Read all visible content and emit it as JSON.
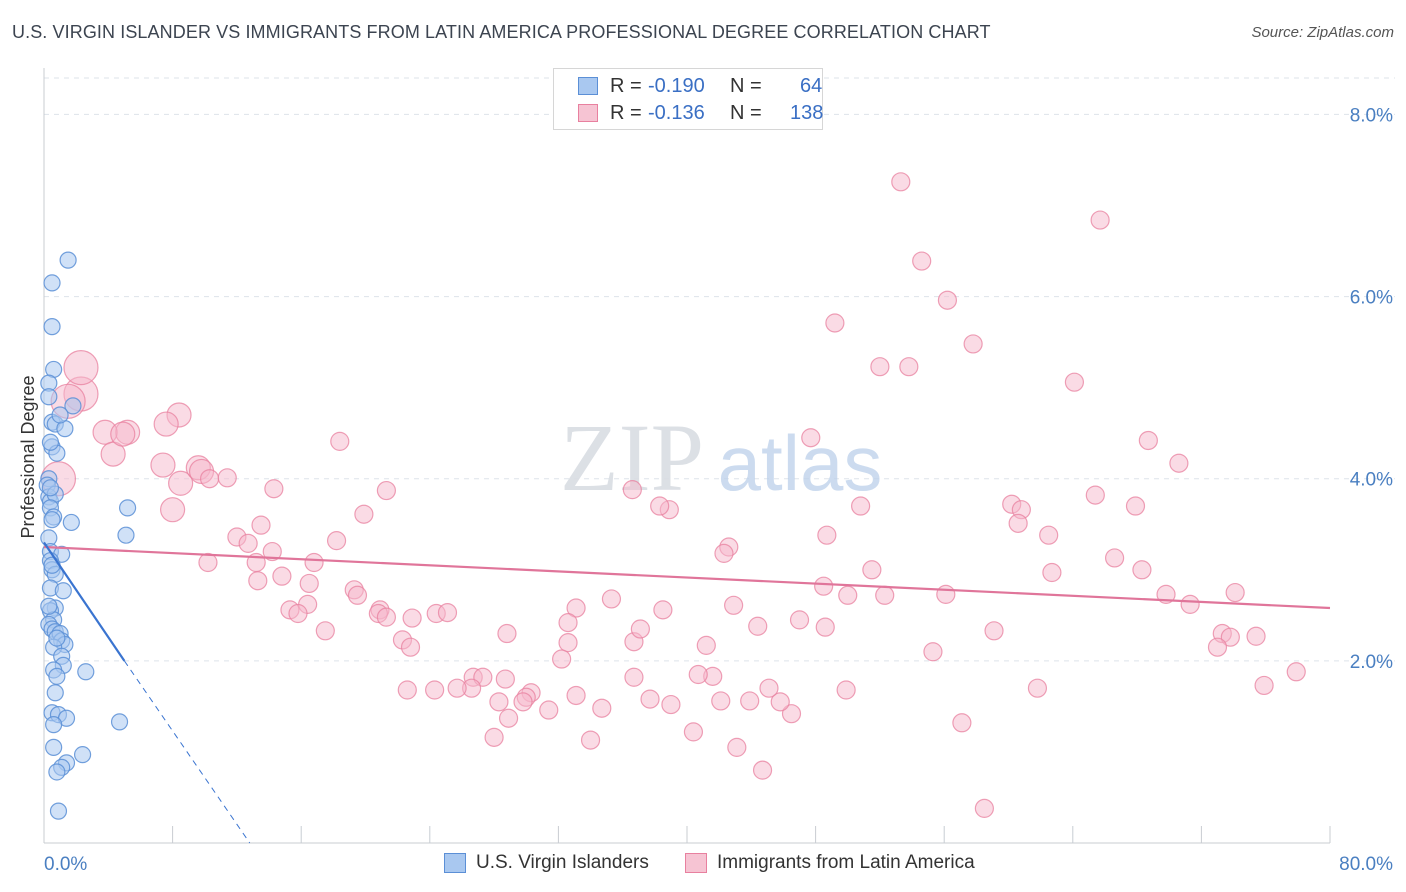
{
  "title": "U.S. VIRGIN ISLANDER VS IMMIGRANTS FROM LATIN AMERICA PROFESSIONAL DEGREE CORRELATION CHART",
  "source": "Source: ZipAtlas.com",
  "watermark": {
    "zip": "ZIP",
    "atlas": "atlas"
  },
  "legend": {
    "r_label": "R =",
    "n_label": "N =",
    "rows": [
      {
        "r": "-0.190",
        "n": "64"
      },
      {
        "r": "-0.136",
        "n": "138"
      }
    ]
  },
  "bottom_legend": [
    "U.S. Virgin Islanders",
    "Immigrants from Latin America"
  ],
  "colors": {
    "blue_fill": "#a9c8f0",
    "blue_stroke": "#5b8fd6",
    "blue_line": "#3a74d0",
    "pink_fill": "#f6b8cb",
    "pink_stroke": "#e8809f",
    "pink_line": "#e0759a",
    "grid": "#dde3ea",
    "axis_text": "#4a7fc1"
  },
  "chart_data": {
    "type": "scatter",
    "title": "U.S. VIRGIN ISLANDER VS IMMIGRANTS FROM LATIN AMERICA PROFESSIONAL DEGREE CORRELATION CHART",
    "xlabel": "",
    "ylabel": "Professional Degree",
    "xlim": [
      0,
      80
    ],
    "ylim": [
      0,
      8.4
    ],
    "x_edge_labels": [
      "0.0%",
      "80.0%"
    ],
    "y_ticks": [
      2,
      4,
      6,
      8
    ],
    "y_tick_labels": [
      "2.0%",
      "4.0%",
      "6.0%",
      "8.0%"
    ],
    "grid": true,
    "series": [
      {
        "name": "U.S. Virgin Islanders",
        "r": -0.19,
        "n": 64,
        "trend": {
          "x0": 0,
          "y0": 3.3,
          "x1": 5.0,
          "y1": 2.0,
          "dash_x1": 12.8,
          "dash_y1": 0
        },
        "points": [
          [
            1.5,
            6.4
          ],
          [
            0.5,
            6.15
          ],
          [
            0.5,
            5.67
          ],
          [
            0.6,
            5.2
          ],
          [
            0.3,
            5.05
          ],
          [
            0.3,
            4.9
          ],
          [
            1.8,
            4.8
          ],
          [
            0.5,
            4.62
          ],
          [
            0.7,
            4.6
          ],
          [
            1.3,
            4.55
          ],
          [
            0.5,
            4.35
          ],
          [
            0.8,
            4.28
          ],
          [
            0.3,
            4.0
          ],
          [
            0.2,
            3.93
          ],
          [
            0.3,
            3.8
          ],
          [
            0.4,
            3.75
          ],
          [
            0.7,
            3.83
          ],
          [
            0.4,
            3.68
          ],
          [
            5.2,
            3.68
          ],
          [
            0.6,
            3.58
          ],
          [
            0.5,
            3.55
          ],
          [
            1.7,
            3.52
          ],
          [
            5.1,
            3.38
          ],
          [
            0.3,
            3.35
          ],
          [
            0.4,
            3.2
          ],
          [
            1.1,
            3.17
          ],
          [
            0.4,
            3.1
          ],
          [
            0.5,
            3.0
          ],
          [
            0.7,
            2.95
          ],
          [
            0.4,
            2.8
          ],
          [
            1.2,
            2.77
          ],
          [
            0.7,
            2.58
          ],
          [
            0.4,
            2.55
          ],
          [
            0.6,
            2.45
          ],
          [
            0.3,
            2.4
          ],
          [
            0.5,
            2.35
          ],
          [
            0.7,
            2.32
          ],
          [
            1.0,
            2.3
          ],
          [
            1.1,
            2.22
          ],
          [
            1.3,
            2.18
          ],
          [
            0.6,
            2.15
          ],
          [
            1.1,
            2.05
          ],
          [
            1.2,
            1.95
          ],
          [
            0.6,
            1.9
          ],
          [
            2.6,
            1.88
          ],
          [
            0.8,
            1.83
          ],
          [
            0.7,
            1.65
          ],
          [
            0.5,
            1.43
          ],
          [
            0.9,
            1.41
          ],
          [
            1.4,
            1.37
          ],
          [
            4.7,
            1.33
          ],
          [
            0.6,
            1.05
          ],
          [
            1.4,
            0.88
          ],
          [
            2.4,
            0.97
          ],
          [
            1.1,
            0.83
          ],
          [
            0.8,
            0.78
          ],
          [
            0.9,
            0.35
          ],
          [
            0.3,
            2.6
          ],
          [
            0.4,
            3.9
          ],
          [
            1.0,
            4.7
          ],
          [
            0.5,
            3.05
          ],
          [
            0.8,
            2.25
          ],
          [
            0.6,
            1.3
          ],
          [
            0.4,
            4.4
          ]
        ]
      },
      {
        "name": "Immigrants from Latin America",
        "r": -0.136,
        "n": 138,
        "trend": {
          "x0": 0,
          "y0": 3.25,
          "x1": 80,
          "y1": 2.58
        },
        "points": [
          [
            53.3,
            7.26
          ],
          [
            65.7,
            6.84
          ],
          [
            54.6,
            6.39
          ],
          [
            56.2,
            5.96
          ],
          [
            49.2,
            5.71
          ],
          [
            57.8,
            5.48
          ],
          [
            52.0,
            5.23
          ],
          [
            53.8,
            5.23
          ],
          [
            64.1,
            5.06
          ],
          [
            47.7,
            4.45
          ],
          [
            68.7,
            4.42
          ],
          [
            70.6,
            4.17
          ],
          [
            18.4,
            4.41
          ],
          [
            8.4,
            4.7
          ],
          [
            7.6,
            4.6
          ],
          [
            5.2,
            4.51
          ],
          [
            3.8,
            4.51
          ],
          [
            2.3,
            4.93
          ],
          [
            1.5,
            4.85
          ],
          [
            4.3,
            4.27
          ],
          [
            2.3,
            5.22
          ],
          [
            0.9,
            4.0
          ],
          [
            7.4,
            4.15
          ],
          [
            8.5,
            3.95
          ],
          [
            9.6,
            4.12
          ],
          [
            9.8,
            4.08
          ],
          [
            10.3,
            4.0
          ],
          [
            11.4,
            4.01
          ],
          [
            14.3,
            3.89
          ],
          [
            21.3,
            3.87
          ],
          [
            36.6,
            3.88
          ],
          [
            38.9,
            3.66
          ],
          [
            50.8,
            3.7
          ],
          [
            60.2,
            3.72
          ],
          [
            65.4,
            3.82
          ],
          [
            67.9,
            3.7
          ],
          [
            60.8,
            3.66
          ],
          [
            60.6,
            3.51
          ],
          [
            62.5,
            3.38
          ],
          [
            19.9,
            3.61
          ],
          [
            13.5,
            3.49
          ],
          [
            12.0,
            3.36
          ],
          [
            18.2,
            3.32
          ],
          [
            12.7,
            3.29
          ],
          [
            8.0,
            3.66
          ],
          [
            13.2,
            3.08
          ],
          [
            16.8,
            3.08
          ],
          [
            10.2,
            3.08
          ],
          [
            14.2,
            3.2
          ],
          [
            13.3,
            2.88
          ],
          [
            14.8,
            2.93
          ],
          [
            16.5,
            2.85
          ],
          [
            19.3,
            2.78
          ],
          [
            19.5,
            2.72
          ],
          [
            16.4,
            2.62
          ],
          [
            15.3,
            2.56
          ],
          [
            15.8,
            2.52
          ],
          [
            20.9,
            2.56
          ],
          [
            22.9,
            2.47
          ],
          [
            24.4,
            2.52
          ],
          [
            25.1,
            2.53
          ],
          [
            20.8,
            2.52
          ],
          [
            21.3,
            2.48
          ],
          [
            17.5,
            2.33
          ],
          [
            22.3,
            2.23
          ],
          [
            22.8,
            2.15
          ],
          [
            28.8,
            2.3
          ],
          [
            33.1,
            2.58
          ],
          [
            32.6,
            2.42
          ],
          [
            35.3,
            2.68
          ],
          [
            38.5,
            2.56
          ],
          [
            36.7,
            2.21
          ],
          [
            32.6,
            2.2
          ],
          [
            32.2,
            2.02
          ],
          [
            37.1,
            2.35
          ],
          [
            41.2,
            2.17
          ],
          [
            41.6,
            1.83
          ],
          [
            42.9,
            2.61
          ],
          [
            44.4,
            2.38
          ],
          [
            47.0,
            2.45
          ],
          [
            48.6,
            2.37
          ],
          [
            48.5,
            2.82
          ],
          [
            42.6,
            3.25
          ],
          [
            42.3,
            3.18
          ],
          [
            48.7,
            3.38
          ],
          [
            38.3,
            3.7
          ],
          [
            50.0,
            2.72
          ],
          [
            52.3,
            2.72
          ],
          [
            51.5,
            3.0
          ],
          [
            56.1,
            2.73
          ],
          [
            62.7,
            2.97
          ],
          [
            66.6,
            3.13
          ],
          [
            68.3,
            3.0
          ],
          [
            69.8,
            2.73
          ],
          [
            71.3,
            2.62
          ],
          [
            73.3,
            2.3
          ],
          [
            73.8,
            2.26
          ],
          [
            75.4,
            2.27
          ],
          [
            73.0,
            2.15
          ],
          [
            74.1,
            2.75
          ],
          [
            77.9,
            1.88
          ],
          [
            75.9,
            1.73
          ],
          [
            61.8,
            1.7
          ],
          [
            57.1,
            1.32
          ],
          [
            55.3,
            2.1
          ],
          [
            59.1,
            2.33
          ],
          [
            49.9,
            1.68
          ],
          [
            46.5,
            1.42
          ],
          [
            45.8,
            1.55
          ],
          [
            45.1,
            1.7
          ],
          [
            42.1,
            1.56
          ],
          [
            43.9,
            1.56
          ],
          [
            44.7,
            0.8
          ],
          [
            43.1,
            1.05
          ],
          [
            40.7,
            1.85
          ],
          [
            39.0,
            1.52
          ],
          [
            37.7,
            1.58
          ],
          [
            36.7,
            1.82
          ],
          [
            34.7,
            1.48
          ],
          [
            33.1,
            1.62
          ],
          [
            30.3,
            1.65
          ],
          [
            28.7,
            1.8
          ],
          [
            30.0,
            1.6
          ],
          [
            28.3,
            1.55
          ],
          [
            26.7,
            1.82
          ],
          [
            27.3,
            1.82
          ],
          [
            26.6,
            1.7
          ],
          [
            24.3,
            1.68
          ],
          [
            22.6,
            1.68
          ],
          [
            25.7,
            1.7
          ],
          [
            28.9,
            1.37
          ],
          [
            29.8,
            1.55
          ],
          [
            28.0,
            1.16
          ],
          [
            31.4,
            1.46
          ],
          [
            34.0,
            1.13
          ],
          [
            40.4,
            1.22
          ],
          [
            58.5,
            0.38
          ],
          [
            4.9,
            4.49
          ]
        ]
      }
    ]
  }
}
